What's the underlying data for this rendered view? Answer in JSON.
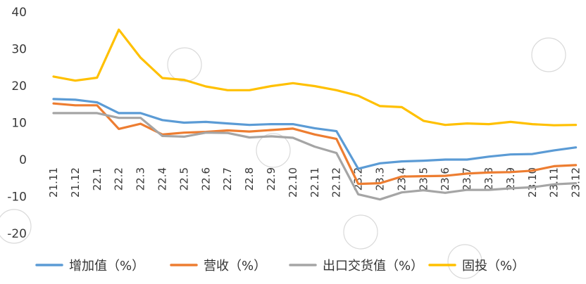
{
  "chart_data": {
    "type": "line",
    "title": "",
    "xlabel": "",
    "ylabel": "",
    "ylim": [
      -20,
      40
    ],
    "yticks": [
      40,
      30,
      20,
      10,
      0,
      -10,
      -20
    ],
    "grid": false,
    "legend": "bottom",
    "categories": [
      "21.11",
      "21.12",
      "22.1",
      "22.2",
      "22.3",
      "22.4",
      "22.5",
      "22.6",
      "22.7",
      "22.8",
      "22.9",
      "22.10",
      "22.11",
      "22.12",
      "23.2",
      "23.3",
      "23.4",
      "23.5",
      "23.6",
      "23.7",
      "23.8",
      "23.9",
      "23.10",
      "23.11",
      "23.12"
    ],
    "series": [
      {
        "name": "增加值（%）",
        "color": "#5b9bd5",
        "values": [
          16.4,
          16.2,
          15.5,
          12.6,
          12.6,
          10.7,
          10.0,
          10.2,
          9.8,
          9.4,
          9.6,
          9.6,
          8.5,
          7.7,
          -2.5,
          -1.0,
          -0.5,
          -0.3,
          0.0,
          0.0,
          0.8,
          1.4,
          1.5,
          2.5,
          3.3
        ]
      },
      {
        "name": "营收（%）",
        "color": "#ed7d31",
        "values": [
          15.2,
          14.7,
          14.7,
          8.3,
          9.7,
          6.8,
          7.3,
          7.5,
          7.9,
          7.6,
          8.0,
          8.4,
          6.8,
          5.6,
          -6.6,
          -6.4,
          -4.6,
          -4.5,
          -4.4,
          -3.8,
          -3.5,
          -3.4,
          -3.0,
          -1.8,
          -1.5
        ]
      },
      {
        "name": "出口交货值（%）",
        "color": "#a5a5a5",
        "values": [
          12.6,
          12.6,
          12.6,
          11.3,
          11.3,
          6.4,
          6.2,
          7.3,
          7.2,
          6.0,
          6.3,
          5.9,
          3.5,
          1.8,
          -9.4,
          -10.8,
          -8.9,
          -8.3,
          -9.0,
          -8.2,
          -8.2,
          -7.8,
          -7.5,
          -6.7,
          -6.4
        ]
      },
      {
        "name": "固投（%）",
        "color": "#ffc000",
        "values": [
          22.5,
          21.4,
          22.2,
          35.2,
          27.6,
          22.1,
          21.6,
          19.8,
          18.8,
          18.8,
          19.9,
          20.7,
          19.9,
          18.8,
          17.3,
          14.5,
          14.2,
          10.5,
          9.4,
          9.8,
          9.6,
          10.2,
          9.6,
          9.3,
          9.4
        ]
      }
    ]
  }
}
